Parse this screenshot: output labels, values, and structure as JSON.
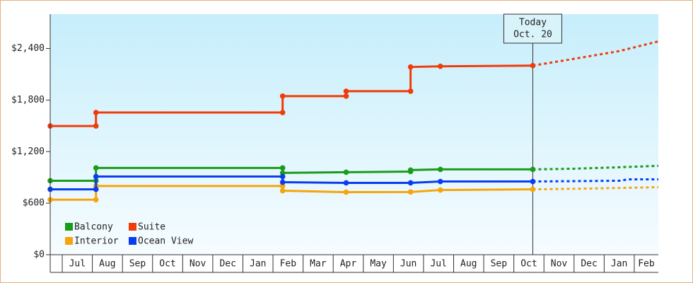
{
  "chart_data": {
    "type": "line",
    "xlim": [
      0.6,
      20.8
    ],
    "ylim": [
      0,
      2800
    ],
    "yticks": [
      {
        "value": 0,
        "label": "$0"
      },
      {
        "value": 600,
        "label": "$600"
      },
      {
        "value": 1200,
        "label": "$1,200"
      },
      {
        "value": 1800,
        "label": "$1,800"
      },
      {
        "value": 2400,
        "label": "$2,400"
      }
    ],
    "xticks": [
      {
        "value": 1,
        "label": "Jul"
      },
      {
        "value": 2,
        "label": "Aug"
      },
      {
        "value": 3,
        "label": "Sep"
      },
      {
        "value": 4,
        "label": "Oct"
      },
      {
        "value": 5,
        "label": "Nov"
      },
      {
        "value": 6,
        "label": "Dec"
      },
      {
        "value": 7,
        "label": "Jan"
      },
      {
        "value": 8,
        "label": "Feb"
      },
      {
        "value": 9,
        "label": "Mar"
      },
      {
        "value": 10,
        "label": "Apr"
      },
      {
        "value": 11,
        "label": "May"
      },
      {
        "value": 12,
        "label": "Jun"
      },
      {
        "value": 13,
        "label": "Jul"
      },
      {
        "value": 14,
        "label": "Aug"
      },
      {
        "value": 15,
        "label": "Sep"
      },
      {
        "value": 16,
        "label": "Oct"
      },
      {
        "value": 17,
        "label": "Nov"
      },
      {
        "value": 18,
        "label": "Dec"
      },
      {
        "value": 19,
        "label": "Jan"
      },
      {
        "value": 20,
        "label": "Feb"
      }
    ],
    "today": {
      "x": 16.63,
      "label": [
        "Today",
        "Oct. 20"
      ]
    },
    "legend": "lower left",
    "series": [
      {
        "name": "Balcony",
        "color": "#1a9c1a",
        "x": [
          0.6,
          2.12,
          2.12,
          8.32,
          8.32,
          10.43,
          12.57,
          12.57,
          13.56,
          16.63,
          18,
          19.5,
          20.8
        ],
        "values": [
          861,
          861,
          1010,
          1010,
          952,
          960,
          968,
          985,
          993,
          993,
          1001,
          1018,
          1034
        ]
      },
      {
        "name": "Suite",
        "color": "#f03c0a",
        "x": [
          0.6,
          2.12,
          2.12,
          8.32,
          8.32,
          10.43,
          10.43,
          12.57,
          12.57,
          13.56,
          16.63,
          18,
          19.5,
          20.8
        ],
        "values": [
          1498,
          1498,
          1655,
          1655,
          1846,
          1846,
          1903,
          1903,
          2185,
          2193,
          2201,
          2280,
          2370,
          2483
        ]
      },
      {
        "name": "Interior",
        "color": "#f5a50a",
        "x": [
          0.6,
          2.12,
          2.12,
          8.32,
          8.32,
          10.43,
          12.57,
          13.56,
          16.63,
          18.5,
          20.8
        ],
        "values": [
          640,
          640,
          800,
          800,
          745,
          728,
          730,
          753,
          761,
          770,
          786
        ]
      },
      {
        "name": "Ocean View",
        "color": "#0a3cf0",
        "x": [
          0.6,
          2.12,
          2.12,
          8.32,
          8.32,
          10.43,
          12.57,
          13.56,
          16.63,
          19.5,
          19.8,
          20.8
        ],
        "values": [
          761,
          761,
          910,
          910,
          844,
          836,
          836,
          852,
          852,
          861,
          877,
          877
        ]
      }
    ]
  }
}
